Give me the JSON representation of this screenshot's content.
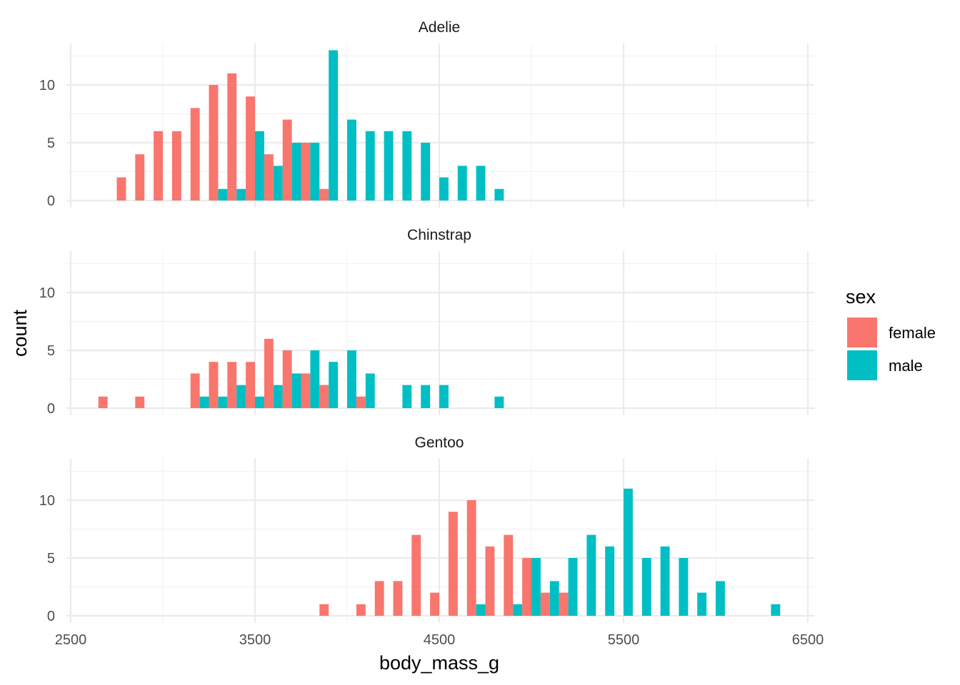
{
  "chart_data": {
    "type": "bar",
    "xlabel": "body_mass_g",
    "ylabel": "count",
    "xlim": [
      2500,
      6500
    ],
    "ylim": [
      0,
      13
    ],
    "x_ticks": [
      "2500",
      "3500",
      "4500",
      "5500",
      "6500"
    ],
    "y_ticks": [
      "0",
      "5",
      "10"
    ],
    "legend": {
      "title": "sex",
      "placement": "right",
      "entries": [
        {
          "label": "female",
          "color": "#F8766D"
        },
        {
          "label": "male",
          "color": "#00BFC4"
        }
      ]
    },
    "bin_width": 100,
    "panels": [
      {
        "strip": "Adelie",
        "bins": [
          {
            "x": 2800,
            "female": 2,
            "male": 0
          },
          {
            "x": 2900,
            "female": 4,
            "male": 0
          },
          {
            "x": 3000,
            "female": 6,
            "male": 0
          },
          {
            "x": 3100,
            "female": 6,
            "male": 0
          },
          {
            "x": 3200,
            "female": 8,
            "male": 0
          },
          {
            "x": 3300,
            "female": 10,
            "male": 1
          },
          {
            "x": 3400,
            "female": 11,
            "male": 1
          },
          {
            "x": 3500,
            "female": 9,
            "male": 6
          },
          {
            "x": 3600,
            "female": 4,
            "male": 3
          },
          {
            "x": 3700,
            "female": 7,
            "male": 5
          },
          {
            "x": 3800,
            "female": 5,
            "male": 5
          },
          {
            "x": 3900,
            "female": 1,
            "male": 13
          },
          {
            "x": 4000,
            "female": 0,
            "male": 7
          },
          {
            "x": 4100,
            "female": 0,
            "male": 6
          },
          {
            "x": 4200,
            "female": 0,
            "male": 6
          },
          {
            "x": 4300,
            "female": 0,
            "male": 6
          },
          {
            "x": 4400,
            "female": 0,
            "male": 5
          },
          {
            "x": 4500,
            "female": 0,
            "male": 2
          },
          {
            "x": 4600,
            "female": 0,
            "male": 3
          },
          {
            "x": 4700,
            "female": 0,
            "male": 3
          },
          {
            "x": 4800,
            "female": 0,
            "male": 1
          }
        ]
      },
      {
        "strip": "Chinstrap",
        "bins": [
          {
            "x": 2700,
            "female": 1,
            "male": 0
          },
          {
            "x": 2900,
            "female": 1,
            "male": 0
          },
          {
            "x": 3200,
            "female": 3,
            "male": 1
          },
          {
            "x": 3300,
            "female": 4,
            "male": 1
          },
          {
            "x": 3400,
            "female": 4,
            "male": 2
          },
          {
            "x": 3500,
            "female": 4,
            "male": 1
          },
          {
            "x": 3600,
            "female": 6,
            "male": 2
          },
          {
            "x": 3700,
            "female": 5,
            "male": 3
          },
          {
            "x": 3800,
            "female": 3,
            "male": 5
          },
          {
            "x": 3900,
            "female": 2,
            "male": 4
          },
          {
            "x": 4000,
            "female": 0,
            "male": 5
          },
          {
            "x": 4100,
            "female": 1,
            "male": 3
          },
          {
            "x": 4300,
            "female": 0,
            "male": 2
          },
          {
            "x": 4400,
            "female": 0,
            "male": 2
          },
          {
            "x": 4500,
            "female": 0,
            "male": 2
          },
          {
            "x": 4800,
            "female": 0,
            "male": 1
          }
        ]
      },
      {
        "strip": "Gentoo",
        "bins": [
          {
            "x": 3900,
            "female": 1,
            "male": 0
          },
          {
            "x": 4100,
            "female": 1,
            "male": 0
          },
          {
            "x": 4200,
            "female": 3,
            "male": 0
          },
          {
            "x": 4300,
            "female": 3,
            "male": 0
          },
          {
            "x": 4400,
            "female": 7,
            "male": 0
          },
          {
            "x": 4500,
            "female": 2,
            "male": 0
          },
          {
            "x": 4600,
            "female": 9,
            "male": 0
          },
          {
            "x": 4700,
            "female": 10,
            "male": 1
          },
          {
            "x": 4800,
            "female": 6,
            "male": 0
          },
          {
            "x": 4900,
            "female": 7,
            "male": 1
          },
          {
            "x": 5000,
            "female": 5,
            "male": 5
          },
          {
            "x": 5100,
            "female": 2,
            "male": 3
          },
          {
            "x": 5200,
            "female": 2,
            "male": 5
          },
          {
            "x": 5300,
            "female": 0,
            "male": 7
          },
          {
            "x": 5400,
            "female": 0,
            "male": 6
          },
          {
            "x": 5500,
            "female": 0,
            "male": 11
          },
          {
            "x": 5600,
            "female": 0,
            "male": 5
          },
          {
            "x": 5700,
            "female": 0,
            "male": 6
          },
          {
            "x": 5800,
            "female": 0,
            "male": 5
          },
          {
            "x": 5900,
            "female": 0,
            "male": 2
          },
          {
            "x": 6000,
            "female": 0,
            "male": 3
          },
          {
            "x": 6300,
            "female": 0,
            "male": 1
          }
        ]
      }
    ]
  }
}
